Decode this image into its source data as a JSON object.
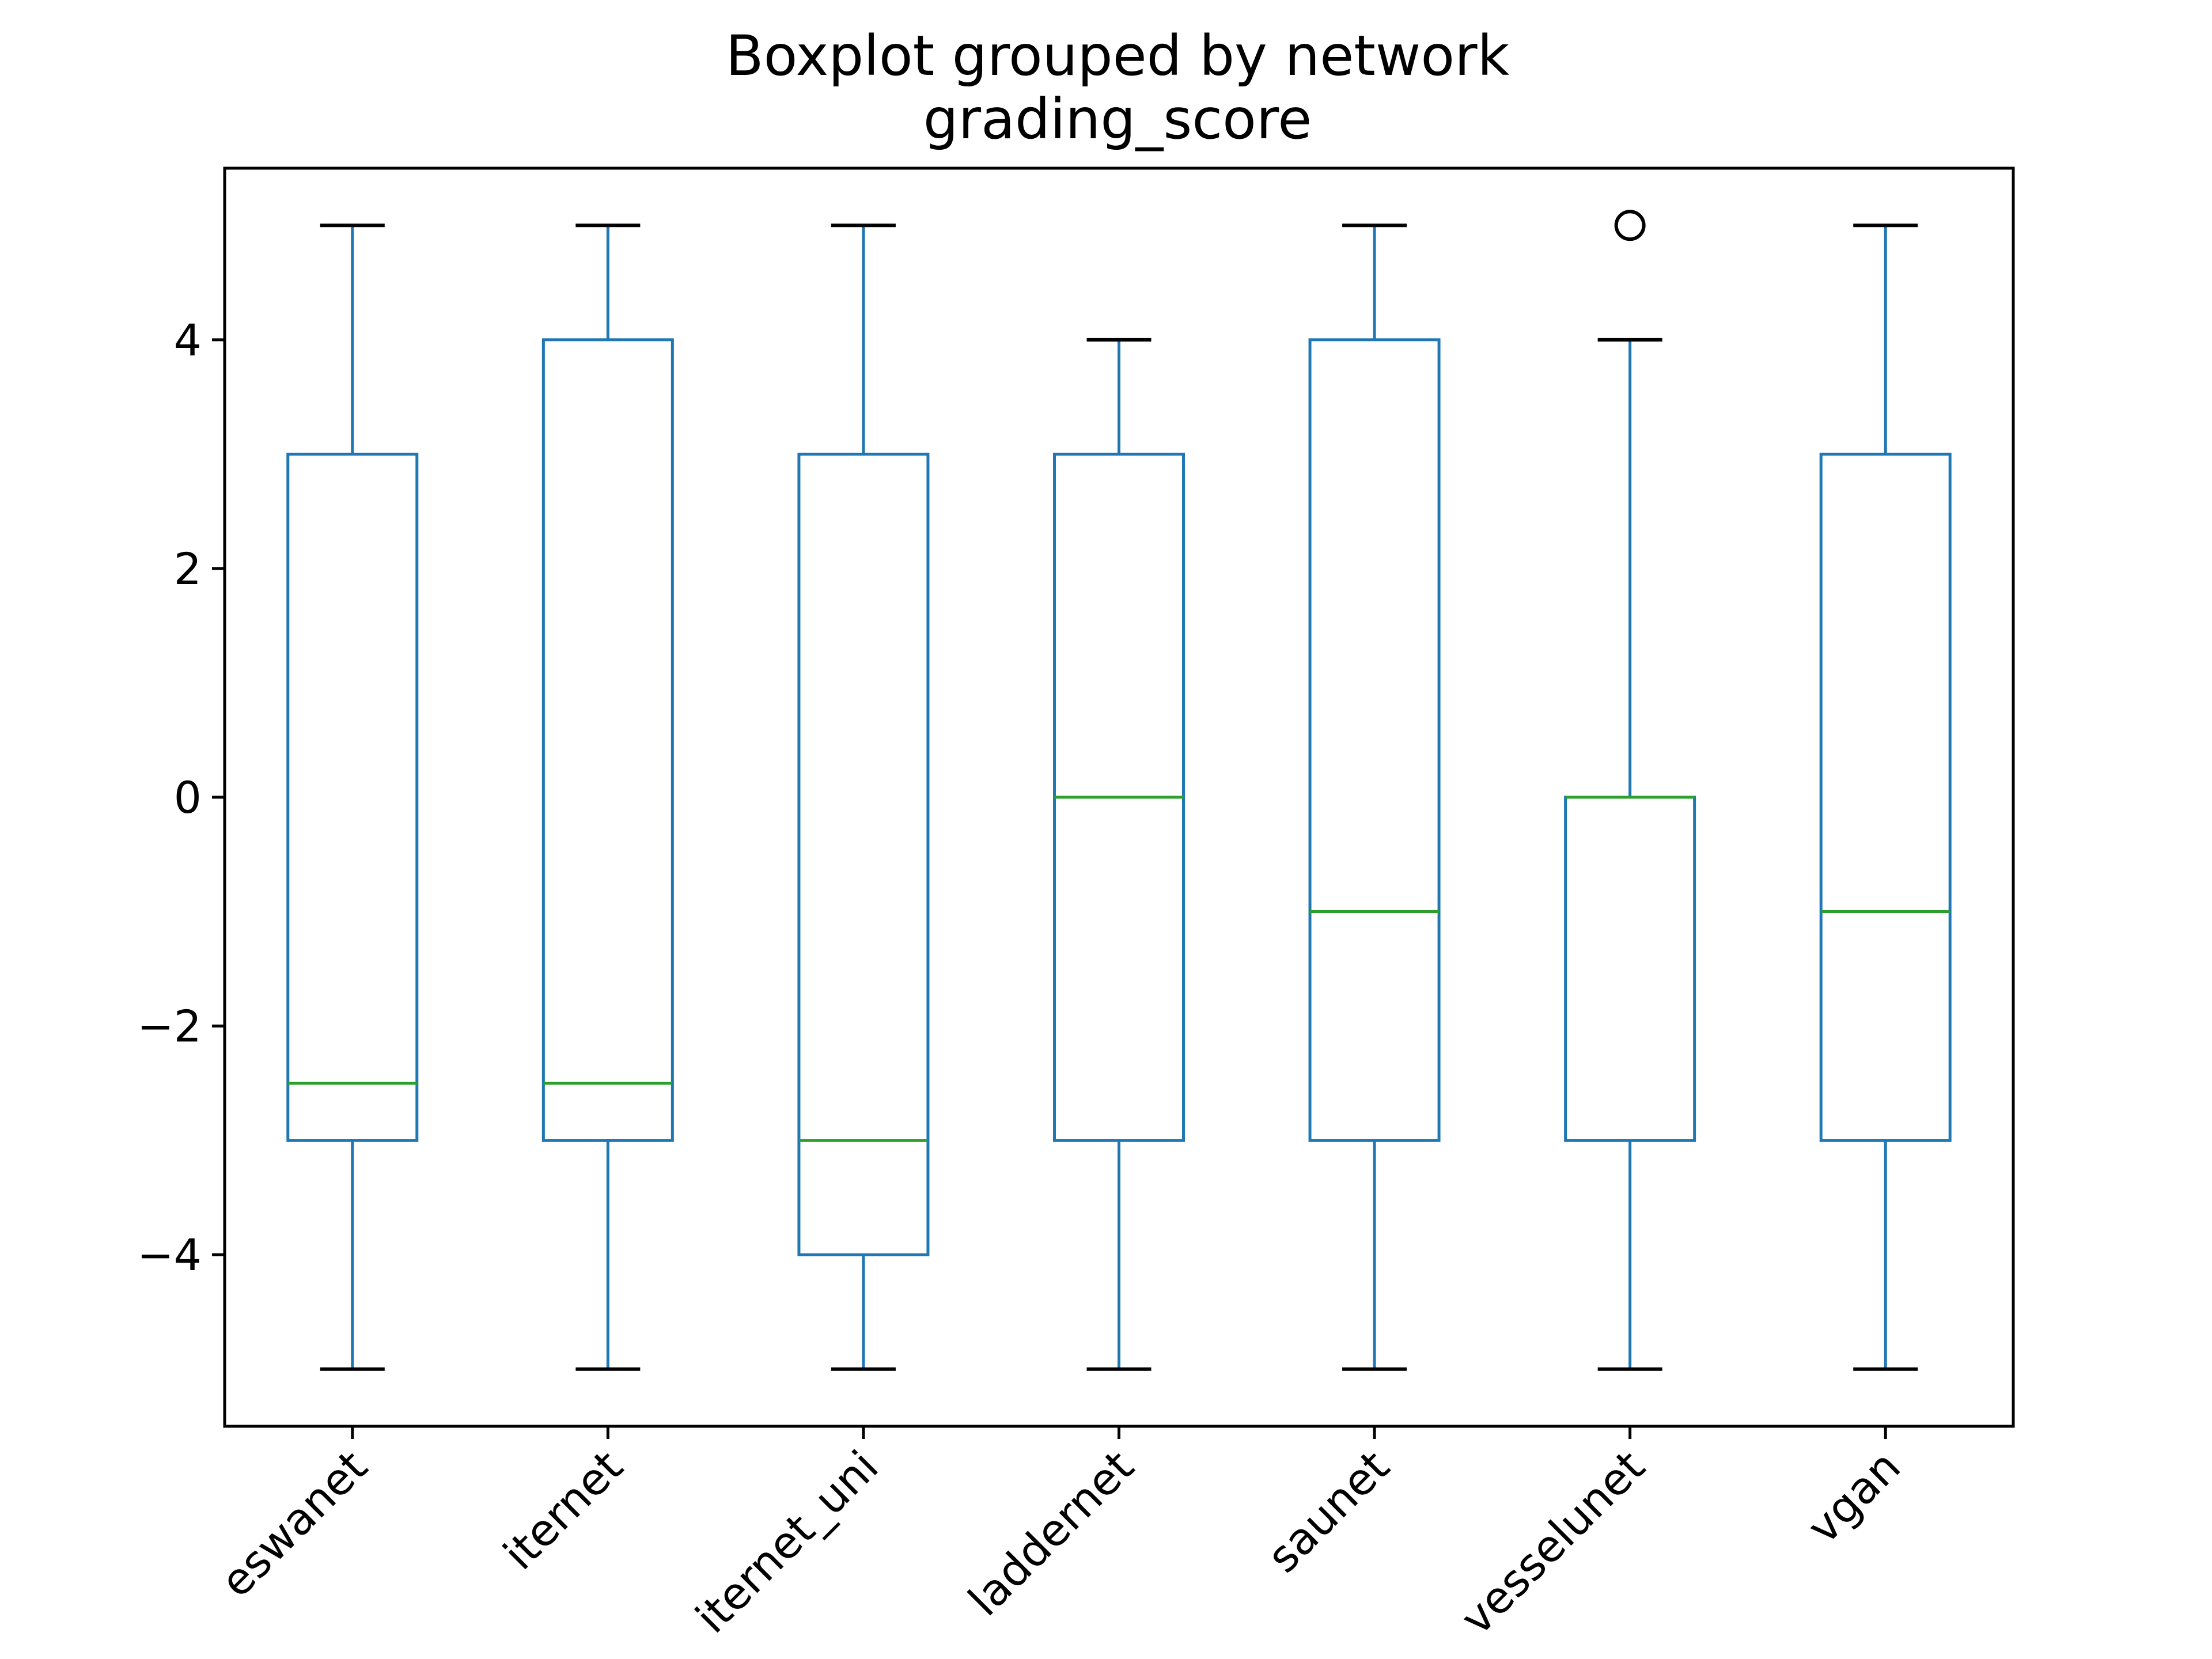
{
  "chart_data": {
    "type": "boxplot",
    "title": "Boxplot grouped by network",
    "subtitle": "grading_score",
    "xlabel": "",
    "ylabel": "",
    "ylim": [
      -5.5,
      5.5
    ],
    "yticks": [
      "−4",
      "−2",
      "0",
      "2",
      "4"
    ],
    "ytick_values": [
      -4,
      -2,
      0,
      2,
      4
    ],
    "grid": false,
    "categories": [
      "eswanet",
      "iternet",
      "iternet_uni",
      "laddernet",
      "saunet",
      "vesselunet",
      "vgan"
    ],
    "boxes": [
      {
        "name": "eswanet",
        "whisker_low": -5,
        "q1": -3,
        "median": -2.5,
        "q3": 3,
        "whisker_high": 5,
        "outliers": []
      },
      {
        "name": "iternet",
        "whisker_low": -5,
        "q1": -3,
        "median": -2.5,
        "q3": 4,
        "whisker_high": 5,
        "outliers": []
      },
      {
        "name": "iternet_uni",
        "whisker_low": -5,
        "q1": -4,
        "median": -3,
        "q3": 3,
        "whisker_high": 5,
        "outliers": []
      },
      {
        "name": "laddernet",
        "whisker_low": -5,
        "q1": -3,
        "median": 0,
        "q3": 3,
        "whisker_high": 4,
        "outliers": []
      },
      {
        "name": "saunet",
        "whisker_low": -5,
        "q1": -3,
        "median": -1,
        "q3": 4,
        "whisker_high": 5,
        "outliers": []
      },
      {
        "name": "vesselunet",
        "whisker_low": -5,
        "q1": -3,
        "median": 0,
        "q3": 0,
        "whisker_high": 4,
        "outliers": [
          5
        ]
      },
      {
        "name": "vgan",
        "whisker_low": -5,
        "q1": -3,
        "median": -1,
        "q3": 3,
        "whisker_high": 5,
        "outliers": []
      }
    ],
    "colors": {
      "box": "#1f77b4",
      "median": "#2ca02c",
      "cap": "#000000",
      "outlier": "#000000"
    }
  }
}
